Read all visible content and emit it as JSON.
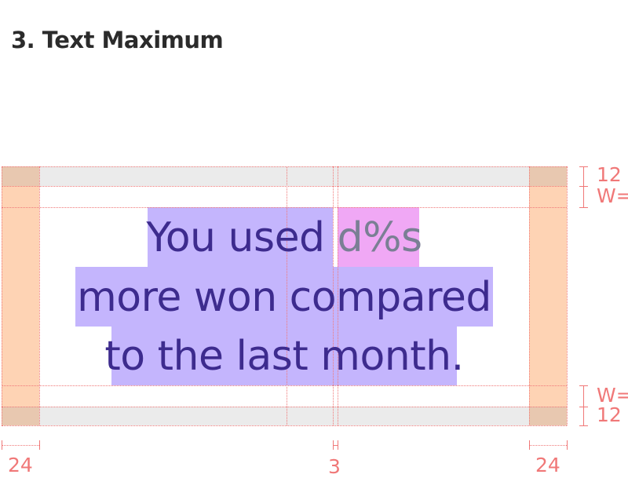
{
  "section": {
    "title": "3. Text Maximum"
  },
  "text_lines": {
    "line1_text": "You used ",
    "line1_var": "d%s",
    "line2": "more won compared",
    "line3": "to the last month."
  },
  "measurements": {
    "top_padding": "12",
    "top_gap": "W=",
    "bottom_gap": "W=",
    "bottom_padding": "12",
    "left_margin": "24",
    "center_gap": "3",
    "right_margin": "24"
  },
  "colors": {
    "guide": "#f07878",
    "text": "#3d2b8e",
    "variable": "#7a7f94",
    "text_highlight": "#c4b5fd",
    "variable_highlight": "#f0a8f5",
    "margin": "#fed3b4",
    "padding": "#ebebeb"
  }
}
